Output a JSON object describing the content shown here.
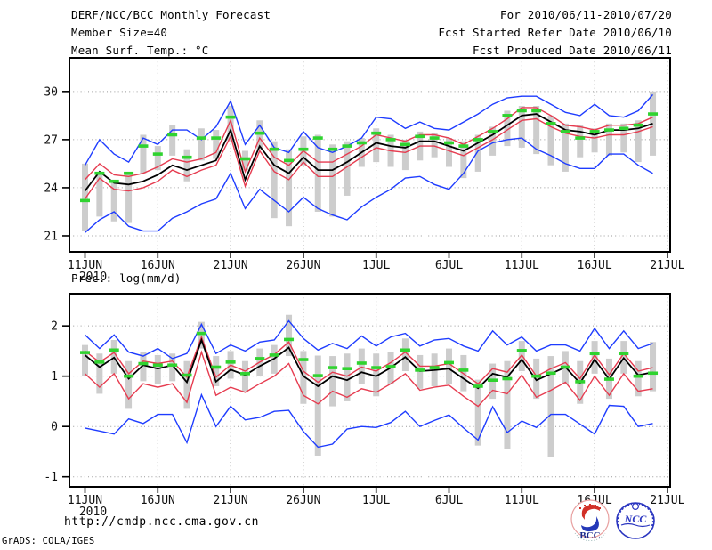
{
  "colors": {
    "blue": "#1e3cff",
    "red": "#e63c50",
    "green": "#2fd32f",
    "black": "#000000",
    "bar": "#cdcdcd",
    "grid": "#9a9a9a",
    "logo_navy": "#1a2a8c",
    "logo_red": "#d23028"
  },
  "header": {
    "title": "DERF/NCC/BCC Monthly Forecast",
    "member_size": "Member Size=40",
    "valid_range": "For 2010/06/11-2010/07/20",
    "fcst_started": "Fcst Started Refer Date 2010/06/10",
    "fcst_produced": "Fcst Produced Date 2010/06/11"
  },
  "footer": {
    "url": "http://cmdp.ncc.cma.gov.cn",
    "grads_credit": "GrADS: COLA/IGES"
  },
  "logos": {
    "bcc": "BCC",
    "ncc": "NCC"
  },
  "chart_data": [
    {
      "type": "line",
      "name": "temperature-chart",
      "title": "Mean Surf. Temp.: °C",
      "grid": true,
      "x_year_label": "2010",
      "x_tick_labels": [
        "11JUN",
        "16JUN",
        "21JUN",
        "26JUN",
        "1JUL",
        "6JUL",
        "11JUL",
        "16JUL",
        "21JUL"
      ],
      "y_ticks": [
        30,
        27,
        24,
        21
      ],
      "axis_range": [
        20.0,
        32.1
      ],
      "days": [
        "2010-06-11",
        "2010-06-12",
        "2010-06-13",
        "2010-06-14",
        "2010-06-15",
        "2010-06-16",
        "2010-06-17",
        "2010-06-18",
        "2010-06-19",
        "2010-06-20",
        "2010-06-21",
        "2010-06-22",
        "2010-06-23",
        "2010-06-24",
        "2010-06-25",
        "2010-06-26",
        "2010-06-27",
        "2010-06-28",
        "2010-06-29",
        "2010-06-30",
        "2010-07-01",
        "2010-07-02",
        "2010-07-03",
        "2010-07-04",
        "2010-07-05",
        "2010-07-06",
        "2010-07-07",
        "2010-07-08",
        "2010-07-09",
        "2010-07-10",
        "2010-07-11",
        "2010-07-12",
        "2010-07-13",
        "2010-07-14",
        "2010-07-15",
        "2010-07-16",
        "2010-07-17",
        "2010-07-18",
        "2010-07-19",
        "2010-07-20"
      ],
      "series": [
        {
          "name": "ensemble-max",
          "color_key": "blue",
          "style": "line",
          "values": [
            25.4,
            27.0,
            26.1,
            25.6,
            27.1,
            26.7,
            27.6,
            27.6,
            27.0,
            27.8,
            29.4,
            26.7,
            27.9,
            26.5,
            26.2,
            27.5,
            26.5,
            26.2,
            26.6,
            27.1,
            28.4,
            28.3,
            27.7,
            28.1,
            27.7,
            27.6,
            28.1,
            28.6,
            29.2,
            29.6,
            29.7,
            29.7,
            29.2,
            28.7,
            28.5,
            29.2,
            28.5,
            28.4,
            28.8,
            29.8
          ]
        },
        {
          "name": "ensemble-upper-quartile",
          "color_key": "red",
          "style": "line",
          "values": [
            24.5,
            25.5,
            24.8,
            24.7,
            24.9,
            25.3,
            25.8,
            25.6,
            25.8,
            26.2,
            28.2,
            25.0,
            27.1,
            25.9,
            25.4,
            26.3,
            25.6,
            25.6,
            26.1,
            26.6,
            27.3,
            27.1,
            26.9,
            27.3,
            27.3,
            27.1,
            26.7,
            27.2,
            27.7,
            28.3,
            29.0,
            29.0,
            28.5,
            27.9,
            27.8,
            27.6,
            27.9,
            27.9,
            28.0,
            28.4
          ]
        },
        {
          "name": "ensemble-mean",
          "color_key": "black",
          "style": "line",
          "values": [
            23.8,
            25.0,
            24.3,
            24.2,
            24.4,
            24.8,
            25.4,
            25.1,
            25.4,
            25.7,
            27.6,
            24.5,
            26.6,
            25.4,
            24.9,
            25.9,
            25.1,
            25.1,
            25.6,
            26.2,
            26.8,
            26.6,
            26.5,
            26.9,
            26.9,
            26.6,
            26.3,
            26.8,
            27.3,
            27.9,
            28.5,
            28.6,
            28.1,
            27.6,
            27.5,
            27.3,
            27.6,
            27.6,
            27.7,
            28.0
          ]
        },
        {
          "name": "ensemble-lower-quartile",
          "color_key": "red",
          "style": "line",
          "values": [
            23.3,
            24.6,
            23.9,
            23.8,
            24.0,
            24.4,
            25.1,
            24.7,
            25.1,
            25.4,
            27.2,
            24.1,
            26.3,
            25.0,
            24.5,
            25.6,
            24.7,
            24.7,
            25.3,
            25.9,
            26.5,
            26.3,
            26.2,
            26.6,
            26.6,
            26.3,
            26.0,
            26.5,
            27.0,
            27.6,
            28.2,
            28.3,
            27.8,
            27.4,
            27.2,
            27.1,
            27.3,
            27.3,
            27.5,
            27.8
          ]
        },
        {
          "name": "ensemble-min",
          "color_key": "blue",
          "style": "line",
          "values": [
            21.2,
            22.0,
            22.5,
            21.6,
            21.3,
            21.3,
            22.1,
            22.5,
            23.0,
            23.3,
            24.9,
            22.7,
            23.9,
            23.2,
            22.5,
            23.4,
            22.7,
            22.3,
            22.0,
            22.8,
            23.4,
            23.9,
            24.6,
            24.7,
            24.2,
            23.9,
            24.9,
            26.3,
            26.8,
            27.0,
            27.1,
            26.4,
            26.0,
            25.5,
            25.2,
            25.2,
            26.1,
            26.1,
            25.4,
            24.9
          ]
        },
        {
          "name": "observation",
          "color_key": "green",
          "style": "dash",
          "values": [
            23.2,
            24.9,
            24.4,
            24.9,
            26.6,
            26.1,
            27.3,
            25.9,
            27.1,
            27.1,
            28.4,
            25.8,
            27.4,
            26.4,
            25.7,
            26.4,
            27.1,
            26.4,
            26.6,
            26.8,
            27.4,
            27.0,
            26.7,
            27.2,
            27.1,
            26.8,
            26.6,
            27.0,
            27.5,
            28.5,
            28.8,
            28.8,
            28.0,
            27.5,
            27.1,
            27.5,
            27.6,
            27.7,
            27.9,
            28.6
          ]
        }
      ],
      "bars": {
        "name": "climatology-spread-bar",
        "lo": [
          21.3,
          22.2,
          21.9,
          21.8,
          24.9,
          25.1,
          26.0,
          24.4,
          25.7,
          25.8,
          26.9,
          25.1,
          26.4,
          22.1,
          21.6,
          25.4,
          22.5,
          22.2,
          23.5,
          25.3,
          25.6,
          25.3,
          25.1,
          25.7,
          25.9,
          25.3,
          24.6,
          25.0,
          26.0,
          26.6,
          26.5,
          26.1,
          25.4,
          25.0,
          25.9,
          26.2,
          26.0,
          26.2,
          25.6,
          26.0
        ],
        "hi": [
          25.5,
          24.9,
          24.4,
          24.9,
          27.3,
          26.6,
          27.9,
          26.4,
          27.7,
          27.6,
          29.1,
          26.3,
          28.2,
          26.9,
          26.4,
          27.2,
          27.3,
          26.7,
          26.9,
          27.1,
          27.7,
          27.3,
          27.0,
          27.5,
          27.4,
          27.1,
          26.9,
          27.3,
          27.8,
          28.8,
          29.1,
          29.1,
          28.5,
          28.0,
          27.9,
          27.7,
          28.0,
          28.0,
          28.2,
          30.0
        ]
      }
    },
    {
      "type": "line",
      "name": "precipitation-chart",
      "title": "Prec.: log(mm/d)",
      "grid": true,
      "x_year_label": "2010",
      "x_tick_labels": [
        "11JUN",
        "16JUN",
        "21JUN",
        "26JUN",
        "1JUL",
        "6JUL",
        "11JUL",
        "16JUL",
        "21JUL"
      ],
      "y_ticks": [
        2,
        1,
        0,
        -1
      ],
      "axis_range": [
        -1.2,
        2.64
      ],
      "days": [
        "2010-06-11",
        "2010-06-12",
        "2010-06-13",
        "2010-06-14",
        "2010-06-15",
        "2010-06-16",
        "2010-06-17",
        "2010-06-18",
        "2010-06-19",
        "2010-06-20",
        "2010-06-21",
        "2010-06-22",
        "2010-06-23",
        "2010-06-24",
        "2010-06-25",
        "2010-06-26",
        "2010-06-27",
        "2010-06-28",
        "2010-06-29",
        "2010-06-30",
        "2010-07-01",
        "2010-07-02",
        "2010-07-03",
        "2010-07-04",
        "2010-07-05",
        "2010-07-06",
        "2010-07-07",
        "2010-07-08",
        "2010-07-09",
        "2010-07-10",
        "2010-07-11",
        "2010-07-12",
        "2010-07-13",
        "2010-07-14",
        "2010-07-15",
        "2010-07-16",
        "2010-07-17",
        "2010-07-18",
        "2010-07-19",
        "2010-07-20"
      ],
      "series": [
        {
          "name": "ensemble-max",
          "color_key": "blue",
          "style": "line",
          "values": [
            1.82,
            1.55,
            1.82,
            1.48,
            1.4,
            1.55,
            1.35,
            1.45,
            2.03,
            1.45,
            1.62,
            1.5,
            1.68,
            1.72,
            2.1,
            1.75,
            1.52,
            1.65,
            1.55,
            1.8,
            1.6,
            1.78,
            1.85,
            1.6,
            1.72,
            1.75,
            1.6,
            1.5,
            1.9,
            1.62,
            1.78,
            1.5,
            1.62,
            1.62,
            1.5,
            1.95,
            1.55,
            1.9,
            1.55,
            1.65
          ]
        },
        {
          "name": "ensemble-upper-quartile",
          "color_key": "red",
          "style": "line",
          "values": [
            1.5,
            1.28,
            1.47,
            1.05,
            1.3,
            1.25,
            1.3,
            0.98,
            1.78,
            0.98,
            1.22,
            1.1,
            1.28,
            1.43,
            1.68,
            1.1,
            0.88,
            1.08,
            1.0,
            1.18,
            1.1,
            1.27,
            1.48,
            1.2,
            1.2,
            1.25,
            1.05,
            0.85,
            1.15,
            1.08,
            1.42,
            1.0,
            1.15,
            1.27,
            0.95,
            1.42,
            1.03,
            1.45,
            1.1,
            1.17
          ]
        },
        {
          "name": "ensemble-mean",
          "color_key": "black",
          "style": "line",
          "values": [
            1.42,
            1.18,
            1.37,
            0.95,
            1.22,
            1.15,
            1.22,
            0.88,
            1.72,
            0.89,
            1.13,
            1.02,
            1.2,
            1.35,
            1.57,
            1.0,
            0.8,
            1.0,
            0.92,
            1.08,
            1.0,
            1.17,
            1.38,
            1.1,
            1.12,
            1.15,
            0.95,
            0.76,
            1.05,
            0.98,
            1.33,
            0.92,
            1.05,
            1.18,
            0.86,
            1.33,
            0.94,
            1.36,
            1.02,
            1.08
          ]
        },
        {
          "name": "ensemble-lower-quartile",
          "color_key": "red",
          "style": "line",
          "values": [
            1.05,
            0.78,
            1.05,
            0.55,
            0.85,
            0.78,
            0.85,
            0.48,
            1.48,
            0.62,
            0.78,
            0.68,
            0.85,
            1.0,
            1.25,
            0.62,
            0.45,
            0.7,
            0.58,
            0.75,
            0.68,
            0.85,
            1.05,
            0.72,
            0.78,
            0.82,
            0.6,
            0.4,
            0.72,
            0.65,
            1.02,
            0.58,
            0.72,
            0.88,
            0.52,
            1.0,
            0.62,
            1.05,
            0.7,
            0.75
          ]
        },
        {
          "name": "ensemble-min",
          "color_key": "blue",
          "style": "line",
          "values": [
            -0.03,
            -0.09,
            -0.15,
            0.15,
            0.06,
            0.24,
            0.24,
            -0.32,
            0.63,
            0.0,
            0.4,
            0.13,
            0.18,
            0.3,
            0.32,
            -0.1,
            -0.41,
            -0.35,
            -0.05,
            0.0,
            -0.02,
            0.08,
            0.3,
            0.0,
            0.12,
            0.23,
            -0.03,
            -0.27,
            0.39,
            -0.12,
            0.11,
            -0.02,
            0.24,
            0.24,
            0.05,
            -0.15,
            0.42,
            0.4,
            0.0,
            0.06
          ]
        },
        {
          "name": "observation",
          "color_key": "green",
          "style": "dash",
          "values": [
            1.47,
            1.28,
            1.52,
            1.0,
            1.25,
            1.22,
            1.22,
            1.02,
            1.85,
            1.18,
            1.28,
            1.05,
            1.35,
            1.42,
            1.73,
            1.33,
            1.01,
            1.17,
            1.15,
            1.26,
            1.17,
            1.19,
            1.52,
            1.12,
            1.17,
            1.27,
            1.12,
            0.8,
            0.92,
            0.95,
            1.51,
            1.0,
            1.06,
            1.18,
            0.89,
            1.45,
            0.94,
            1.45,
            1.0,
            1.06
          ]
        }
      ],
      "bars": {
        "name": "climatology-spread-bar",
        "lo": [
          1.0,
          0.65,
          1.05,
          0.35,
          0.9,
          0.85,
          0.9,
          0.35,
          1.55,
          0.8,
          0.95,
          0.7,
          1.0,
          1.05,
          1.4,
          0.45,
          -0.58,
          0.4,
          0.5,
          0.85,
          0.6,
          0.85,
          1.1,
          0.75,
          0.8,
          0.85,
          0.7,
          -0.38,
          0.55,
          -0.45,
          1.1,
          0.55,
          -0.6,
          0.85,
          0.45,
          1.05,
          0.55,
          1.05,
          0.6,
          0.7
        ],
        "hi": [
          1.62,
          1.45,
          1.72,
          1.3,
          1.48,
          1.42,
          1.45,
          1.3,
          2.08,
          1.4,
          1.5,
          1.3,
          1.55,
          1.62,
          2.22,
          1.5,
          1.41,
          1.4,
          1.45,
          1.55,
          1.45,
          1.48,
          1.75,
          1.42,
          1.45,
          1.55,
          1.42,
          0.93,
          1.25,
          1.3,
          1.7,
          1.35,
          1.4,
          1.5,
          1.3,
          1.7,
          1.35,
          1.7,
          1.3,
          1.68
        ]
      }
    }
  ]
}
